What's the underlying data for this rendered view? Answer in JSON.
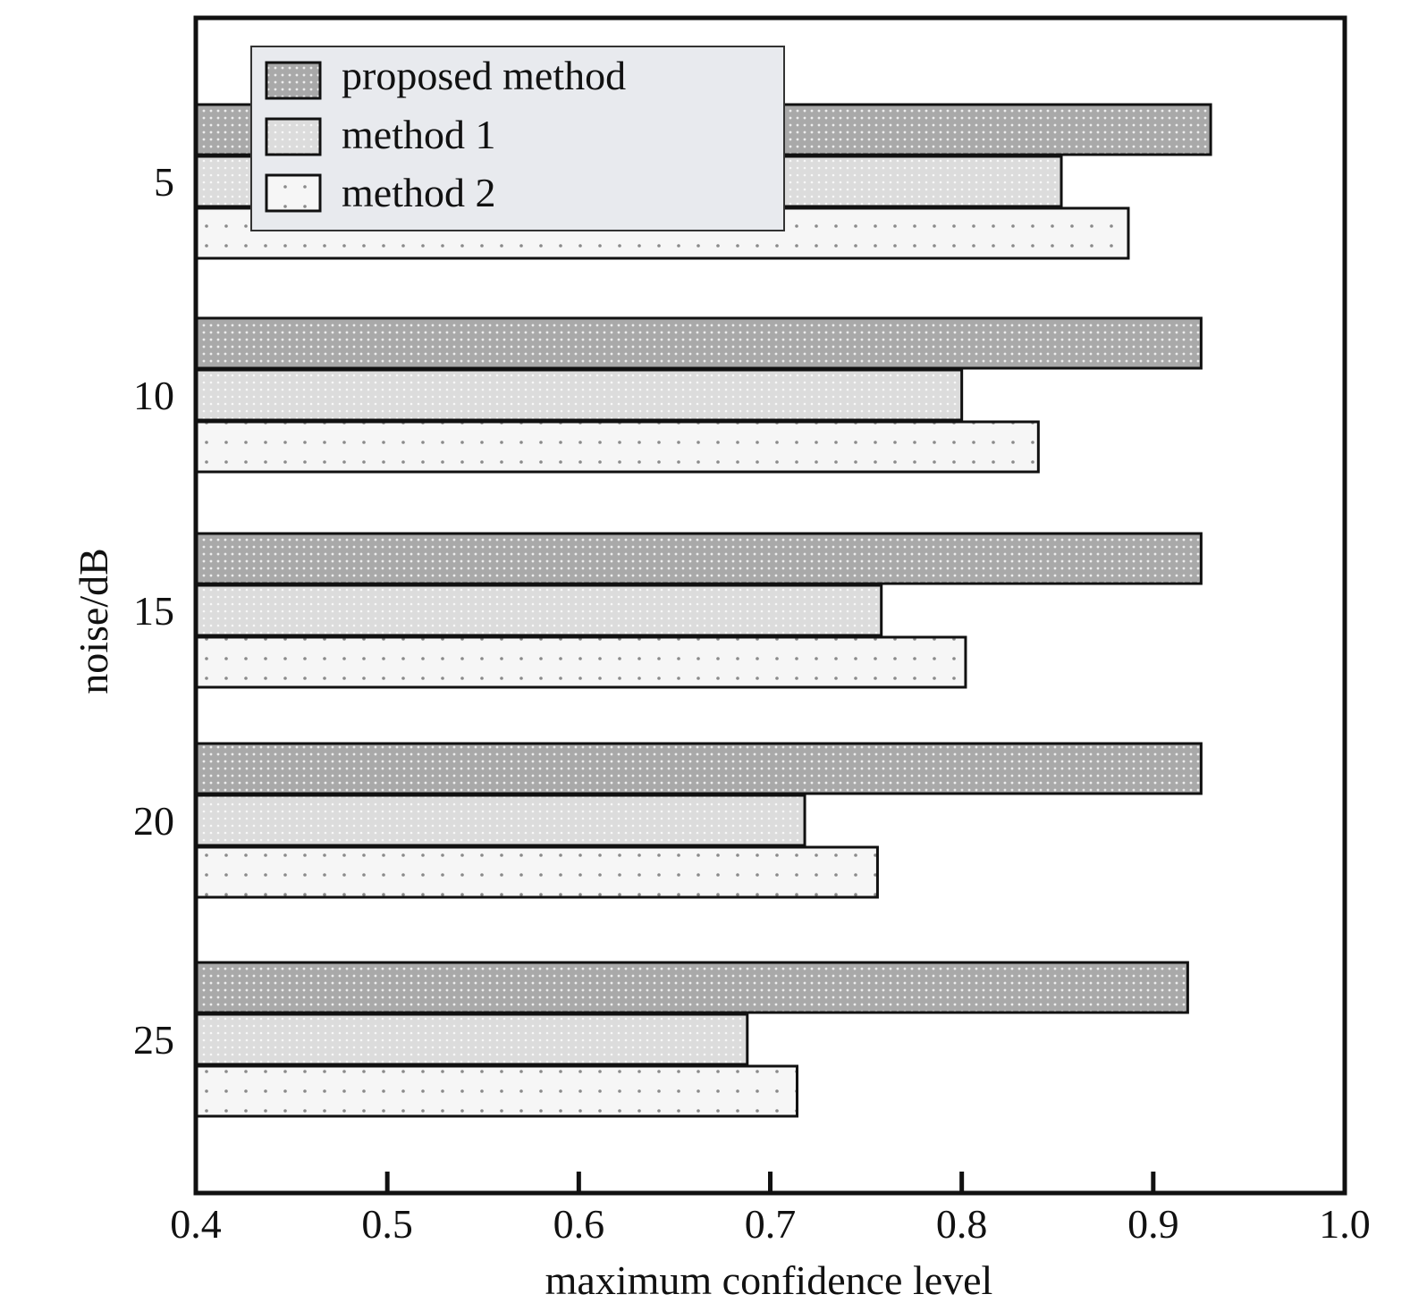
{
  "chart_data": {
    "type": "bar",
    "orientation": "horizontal",
    "categories": [
      "5",
      "10",
      "15",
      "20",
      "25"
    ],
    "series": [
      {
        "name": "proposed method",
        "values": [
          0.93,
          0.925,
          0.925,
          0.925,
          0.918
        ]
      },
      {
        "name": "method 1",
        "values": [
          0.852,
          0.8,
          0.758,
          0.718,
          0.688
        ]
      },
      {
        "name": "method 2",
        "values": [
          0.887,
          0.84,
          0.802,
          0.756,
          0.714
        ]
      }
    ],
    "xlabel": "maximum confidence level",
    "ylabel": "noise/dB",
    "xlim": [
      0.4,
      1.0
    ],
    "xticks": [
      "0.4",
      "0.5",
      "0.6",
      "0.7",
      "0.8",
      "0.9",
      "1.0"
    ],
    "grid": false,
    "legend_position": "top-left",
    "colors": {
      "proposed method": "#a9a9a9",
      "method 1": "#d7d7d7",
      "method 2": "#f5f5f5",
      "legend_background": "#e8eaee"
    }
  }
}
